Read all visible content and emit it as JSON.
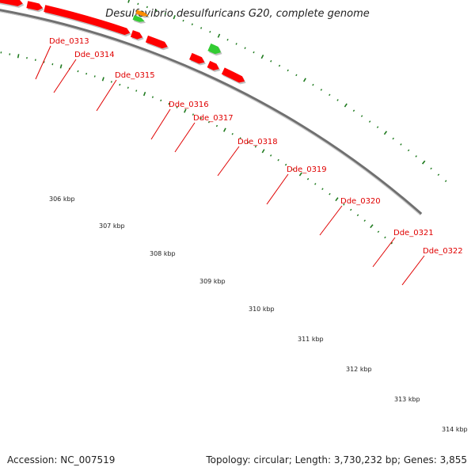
{
  "title": "Desulfovibrio desulfuricans G20, complete genome",
  "accession_text": "Accession: NC_007519",
  "summary_text": "Topology: circular; Length: 3,730,232 bp; Genes: 3,855",
  "ticks": [
    "306 kbp",
    "307 kbp",
    "308 kbp",
    "309 kbp",
    "310 kbp",
    "311 kbp",
    "312 kbp",
    "313 kbp",
    "314 kbp"
  ],
  "gene_labels": [
    "Dde_0313",
    "Dde_0314",
    "Dde_0315",
    "Dde_0316",
    "Dde_0317",
    "Dde_0318",
    "Dde_0319",
    "Dde_0320",
    "Dde_0321",
    "Dde_0322"
  ],
  "colors": {
    "label": "#e00000",
    "gene_red": "#ff0000",
    "gene_green": "#33cc33",
    "gene_cyan": "#00e5ee",
    "gene_magenta": "#ee1fa0",
    "gene_grey": "#c8c8c8",
    "gene_orange": "#ff8c00",
    "dots": "#1e7a1e",
    "backbone": "#808080"
  }
}
